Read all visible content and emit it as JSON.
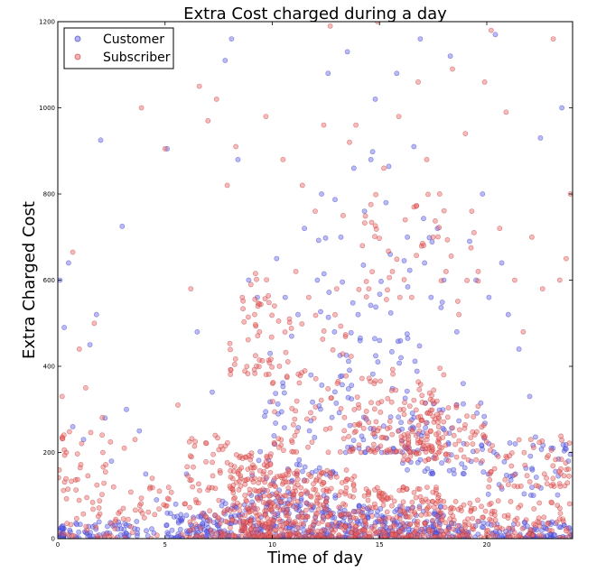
{
  "chart_data": {
    "type": "scatter",
    "title": "Extra Cost charged during a day",
    "xlabel": "Time of day",
    "ylabel": "Extra Charged Cost",
    "xlim": [
      0,
      24
    ],
    "ylim": [
      0,
      1200
    ],
    "xticks": [
      0,
      5,
      10,
      15,
      20
    ],
    "yticks": [
      0,
      200,
      400,
      600,
      800,
      1000,
      1200
    ],
    "grid": false,
    "legend_position": "top-left",
    "series": [
      {
        "name": "Customer",
        "color": "#6666ee",
        "edge": "#3333bb",
        "points": [
          [
            0.1,
            600
          ],
          [
            0.3,
            490
          ],
          [
            0.5,
            640
          ],
          [
            0.7,
            260
          ],
          [
            1.2,
            230
          ],
          [
            1.5,
            450
          ],
          [
            1.8,
            520
          ],
          [
            2.0,
            925
          ],
          [
            2.2,
            280
          ],
          [
            2.5,
            180
          ],
          [
            3.0,
            725
          ],
          [
            3.2,
            300
          ],
          [
            3.8,
            250
          ],
          [
            4.1,
            150
          ],
          [
            4.6,
            90
          ],
          [
            5.1,
            905
          ],
          [
            5.5,
            80
          ],
          [
            6.0,
            150
          ],
          [
            6.5,
            480
          ],
          [
            7.2,
            340
          ],
          [
            7.8,
            1110
          ],
          [
            8.1,
            1160
          ],
          [
            8.4,
            880
          ],
          [
            8.9,
            600
          ],
          [
            9.3,
            560
          ],
          [
            9.9,
            430
          ],
          [
            10.2,
            650
          ],
          [
            10.6,
            560
          ],
          [
            10.9,
            470
          ],
          [
            11.2,
            520
          ],
          [
            11.5,
            720
          ],
          [
            11.8,
            380
          ],
          [
            12.1,
            600
          ],
          [
            12.3,
            800
          ],
          [
            12.6,
            1080
          ],
          [
            12.9,
            480
          ],
          [
            13.2,
            700
          ],
          [
            13.5,
            1130
          ],
          [
            13.8,
            860
          ],
          [
            14.0,
            520
          ],
          [
            14.3,
            760
          ],
          [
            14.6,
            880
          ],
          [
            14.8,
            1020
          ],
          [
            15.0,
            460
          ],
          [
            15.3,
            780
          ],
          [
            15.5,
            660
          ],
          [
            15.8,
            1080
          ],
          [
            16.0,
            420
          ],
          [
            16.3,
            700
          ],
          [
            16.6,
            910
          ],
          [
            16.9,
            1160
          ],
          [
            17.1,
            640
          ],
          [
            17.4,
            560
          ],
          [
            17.7,
            720
          ],
          [
            18.0,
            600
          ],
          [
            18.3,
            1120
          ],
          [
            18.6,
            480
          ],
          [
            18.9,
            360
          ],
          [
            19.2,
            690
          ],
          [
            19.5,
            600
          ],
          [
            19.8,
            800
          ],
          [
            20.1,
            560
          ],
          [
            20.4,
            1170
          ],
          [
            20.7,
            640
          ],
          [
            21.0,
            520
          ],
          [
            21.5,
            440
          ],
          [
            22.0,
            330
          ],
          [
            22.5,
            930
          ],
          [
            23.0,
            210
          ],
          [
            23.5,
            1000
          ],
          [
            23.8,
            180
          ]
        ],
        "dense": [
          [
            0.1,
            0.3,
            0,
            30,
            30
          ],
          [
            0.5,
            4.5,
            0,
            40,
            60
          ],
          [
            5,
            7.5,
            0,
            60,
            80
          ],
          [
            7.5,
            13,
            0,
            100,
            220
          ],
          [
            13,
            18,
            0,
            80,
            200
          ],
          [
            18,
            24,
            0,
            40,
            120
          ],
          [
            9,
            13,
            100,
            400,
            60
          ],
          [
            13,
            17,
            200,
            480,
            70
          ],
          [
            16,
            20,
            150,
            330,
            60
          ],
          [
            20,
            24,
            100,
            250,
            40
          ],
          [
            12,
            18,
            500,
            900,
            25
          ]
        ]
      },
      {
        "name": "Subscriber",
        "color": "#ee6666",
        "edge": "#bb3333",
        "points": [
          [
            0.2,
            330
          ],
          [
            0.4,
            200
          ],
          [
            0.7,
            665
          ],
          [
            1.0,
            440
          ],
          [
            1.3,
            350
          ],
          [
            1.7,
            500
          ],
          [
            2.1,
            200
          ],
          [
            2.6,
            120
          ],
          [
            3.1,
            210
          ],
          [
            3.6,
            230
          ],
          [
            3.9,
            1000
          ],
          [
            4.4,
            140
          ],
          [
            5.0,
            905
          ],
          [
            5.6,
            310
          ],
          [
            6.2,
            580
          ],
          [
            6.6,
            1050
          ],
          [
            7.0,
            970
          ],
          [
            7.4,
            1020
          ],
          [
            7.9,
            820
          ],
          [
            8.3,
            910
          ],
          [
            8.6,
            560
          ],
          [
            9.0,
            590
          ],
          [
            9.4,
            480
          ],
          [
            9.7,
            980
          ],
          [
            10.1,
            540
          ],
          [
            10.5,
            880
          ],
          [
            10.8,
            510
          ],
          [
            11.1,
            620
          ],
          [
            11.4,
            820
          ],
          [
            11.7,
            560
          ],
          [
            12.0,
            760
          ],
          [
            12.4,
            960
          ],
          [
            12.7,
            1190
          ],
          [
            13.0,
            580
          ],
          [
            13.3,
            750
          ],
          [
            13.6,
            920
          ],
          [
            13.9,
            960
          ],
          [
            14.2,
            680
          ],
          [
            14.5,
            580
          ],
          [
            14.9,
            1200
          ],
          [
            15.2,
            860
          ],
          [
            15.6,
            620
          ],
          [
            15.9,
            980
          ],
          [
            16.2,
            740
          ],
          [
            16.5,
            560
          ],
          [
            16.8,
            1060
          ],
          [
            17.2,
            880
          ],
          [
            17.5,
            700
          ],
          [
            17.8,
            800
          ],
          [
            18.1,
            620
          ],
          [
            18.4,
            1090
          ],
          [
            18.7,
            520
          ],
          [
            19.0,
            940
          ],
          [
            19.3,
            760
          ],
          [
            19.6,
            620
          ],
          [
            19.9,
            1060
          ],
          [
            20.2,
            1180
          ],
          [
            20.6,
            720
          ],
          [
            20.9,
            990
          ],
          [
            21.3,
            600
          ],
          [
            21.7,
            480
          ],
          [
            22.1,
            700
          ],
          [
            22.6,
            580
          ],
          [
            23.1,
            1160
          ],
          [
            23.4,
            600
          ],
          [
            23.7,
            650
          ],
          [
            23.9,
            800
          ]
        ],
        "dense": [
          [
            0,
            2.5,
            0,
            300,
            60
          ],
          [
            2.5,
            6,
            0,
            120,
            40
          ],
          [
            6,
            8,
            0,
            240,
            80
          ],
          [
            8,
            10,
            0,
            200,
            200
          ],
          [
            10,
            14,
            0,
            160,
            260
          ],
          [
            14,
            18,
            0,
            120,
            200
          ],
          [
            18,
            24,
            0,
            90,
            140
          ],
          [
            8,
            10,
            380,
            620,
            45
          ],
          [
            10,
            14,
            200,
            520,
            80
          ],
          [
            14,
            18,
            200,
            400,
            120
          ],
          [
            16,
            20,
            180,
            320,
            90
          ],
          [
            20,
            24,
            120,
            240,
            60
          ],
          [
            14,
            20,
            550,
            800,
            40
          ]
        ]
      }
    ]
  }
}
